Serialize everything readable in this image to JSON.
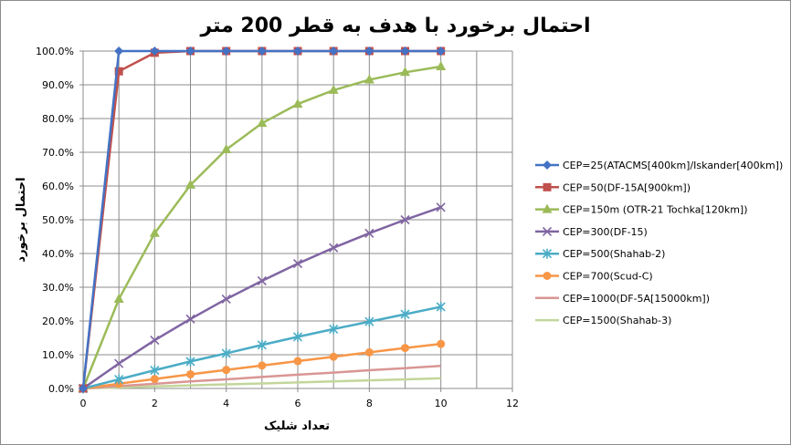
{
  "chart_data": {
    "type": "line",
    "title": "احتمال برخورد با هدف به قطر 200 متر",
    "xlabel": "تعداد شلیک",
    "ylabel": "احتمال برخورد",
    "xlim": [
      0,
      12
    ],
    "ylim": [
      0,
      1
    ],
    "x_ticks": [
      "0",
      "2",
      "4",
      "6",
      "8",
      "10",
      "12"
    ],
    "y_ticks": [
      "0.0%",
      "10.0%",
      "20.0%",
      "30.0%",
      "40.0%",
      "50.0%",
      "60.0%",
      "70.0%",
      "80.0%",
      "90.0%",
      "100.0%"
    ],
    "grid": true,
    "legend_position": "right",
    "x": [
      0,
      1,
      2,
      3,
      4,
      5,
      6,
      7,
      8,
      9,
      10
    ],
    "series": [
      {
        "name": "CEP=25(ATACMS[400km]/Iskander[400km])",
        "color": "#4472c4",
        "marker": "diamond",
        "values": [
          0,
          1.0,
          1.0,
          1.0,
          1.0,
          1.0,
          1.0,
          1.0,
          1.0,
          1.0,
          1.0
        ]
      },
      {
        "name": "CEP=50(DF-15A[900km])",
        "color": "#c0504d",
        "marker": "square",
        "values": [
          0,
          0.94,
          0.995,
          1.0,
          1.0,
          1.0,
          1.0,
          1.0,
          1.0,
          1.0,
          1.0
        ]
      },
      {
        "name": "CEP=150m (OTR-21 Tochka[120km])",
        "color": "#9bbb59",
        "marker": "triangle",
        "values": [
          0,
          0.265,
          0.46,
          0.603,
          0.708,
          0.786,
          0.843,
          0.884,
          0.915,
          0.937,
          0.954
        ]
      },
      {
        "name": "CEP=300(DF-15)",
        "color": "#8064a2",
        "marker": "x",
        "values": [
          0,
          0.074,
          0.143,
          0.206,
          0.265,
          0.319,
          0.37,
          0.417,
          0.46,
          0.5,
          0.537
        ]
      },
      {
        "name": "CEP=500(Shahab-2)",
        "color": "#4bacc6",
        "marker": "star",
        "values": [
          0,
          0.027,
          0.054,
          0.08,
          0.104,
          0.129,
          0.153,
          0.176,
          0.198,
          0.22,
          0.242
        ]
      },
      {
        "name": "CEP=700(Scud-C)",
        "color": "#f79646",
        "marker": "circle",
        "values": [
          0,
          0.014,
          0.028,
          0.042,
          0.055,
          0.068,
          0.081,
          0.094,
          0.107,
          0.12,
          0.132
        ]
      },
      {
        "name": "CEP=1000(DF-5A[15000km])",
        "color": "#d99694",
        "marker": "none",
        "values": [
          0,
          0.007,
          0.014,
          0.021,
          0.027,
          0.034,
          0.041,
          0.047,
          0.054,
          0.06,
          0.067
        ]
      },
      {
        "name": "CEP=1500(Shahab-3)",
        "color": "#c3d69b",
        "marker": "none",
        "values": [
          0,
          0.003,
          0.006,
          0.009,
          0.012,
          0.015,
          0.018,
          0.021,
          0.024,
          0.027,
          0.03
        ]
      }
    ]
  }
}
